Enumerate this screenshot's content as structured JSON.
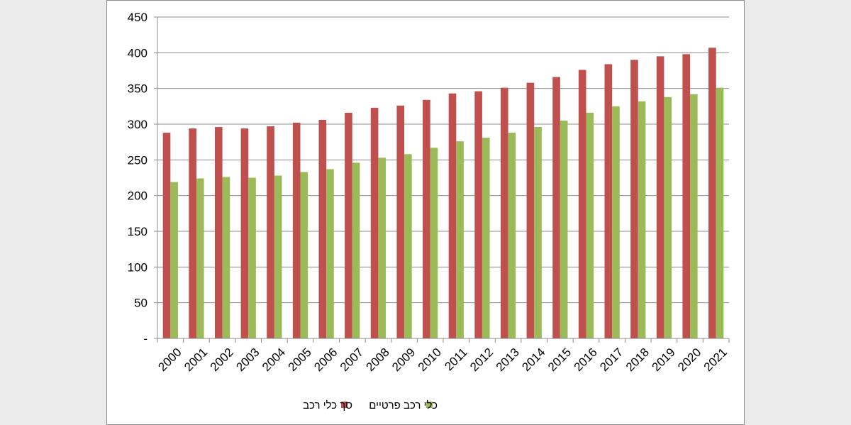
{
  "chart_data": {
    "type": "bar",
    "title": "",
    "xlabel": "",
    "ylabel": "",
    "categories": [
      "2000",
      "2001",
      "2002",
      "2003",
      "2004",
      "2005",
      "2006",
      "2007",
      "2008",
      "2009",
      "2010",
      "2011",
      "2012",
      "2013",
      "2014",
      "2015",
      "2016",
      "2017",
      "2018",
      "2019",
      "2020",
      "2021"
    ],
    "series": [
      {
        "name": "סך כלי רכב",
        "color": "#c0504d",
        "values": [
          288,
          294,
          296,
          294,
          297,
          302,
          306,
          316,
          323,
          326,
          334,
          343,
          346,
          351,
          358,
          366,
          376,
          384,
          390,
          395,
          398,
          407
        ]
      },
      {
        "name": "כלי רכב פרטיים",
        "color": "#9bbb59",
        "values": [
          219,
          224,
          226,
          225,
          228,
          233,
          237,
          246,
          253,
          258,
          267,
          276,
          281,
          288,
          296,
          305,
          316,
          325,
          332,
          338,
          342,
          351
        ]
      }
    ],
    "ylim": [
      0,
      450
    ],
    "yticks": [
      0,
      50,
      100,
      150,
      200,
      250,
      300,
      350,
      400,
      450
    ],
    "ytick_labels": [
      "-",
      "50",
      "100",
      "150",
      "200",
      "250",
      "300",
      "350",
      "400",
      "450"
    ],
    "grid": true,
    "legend_position": "bottom"
  }
}
